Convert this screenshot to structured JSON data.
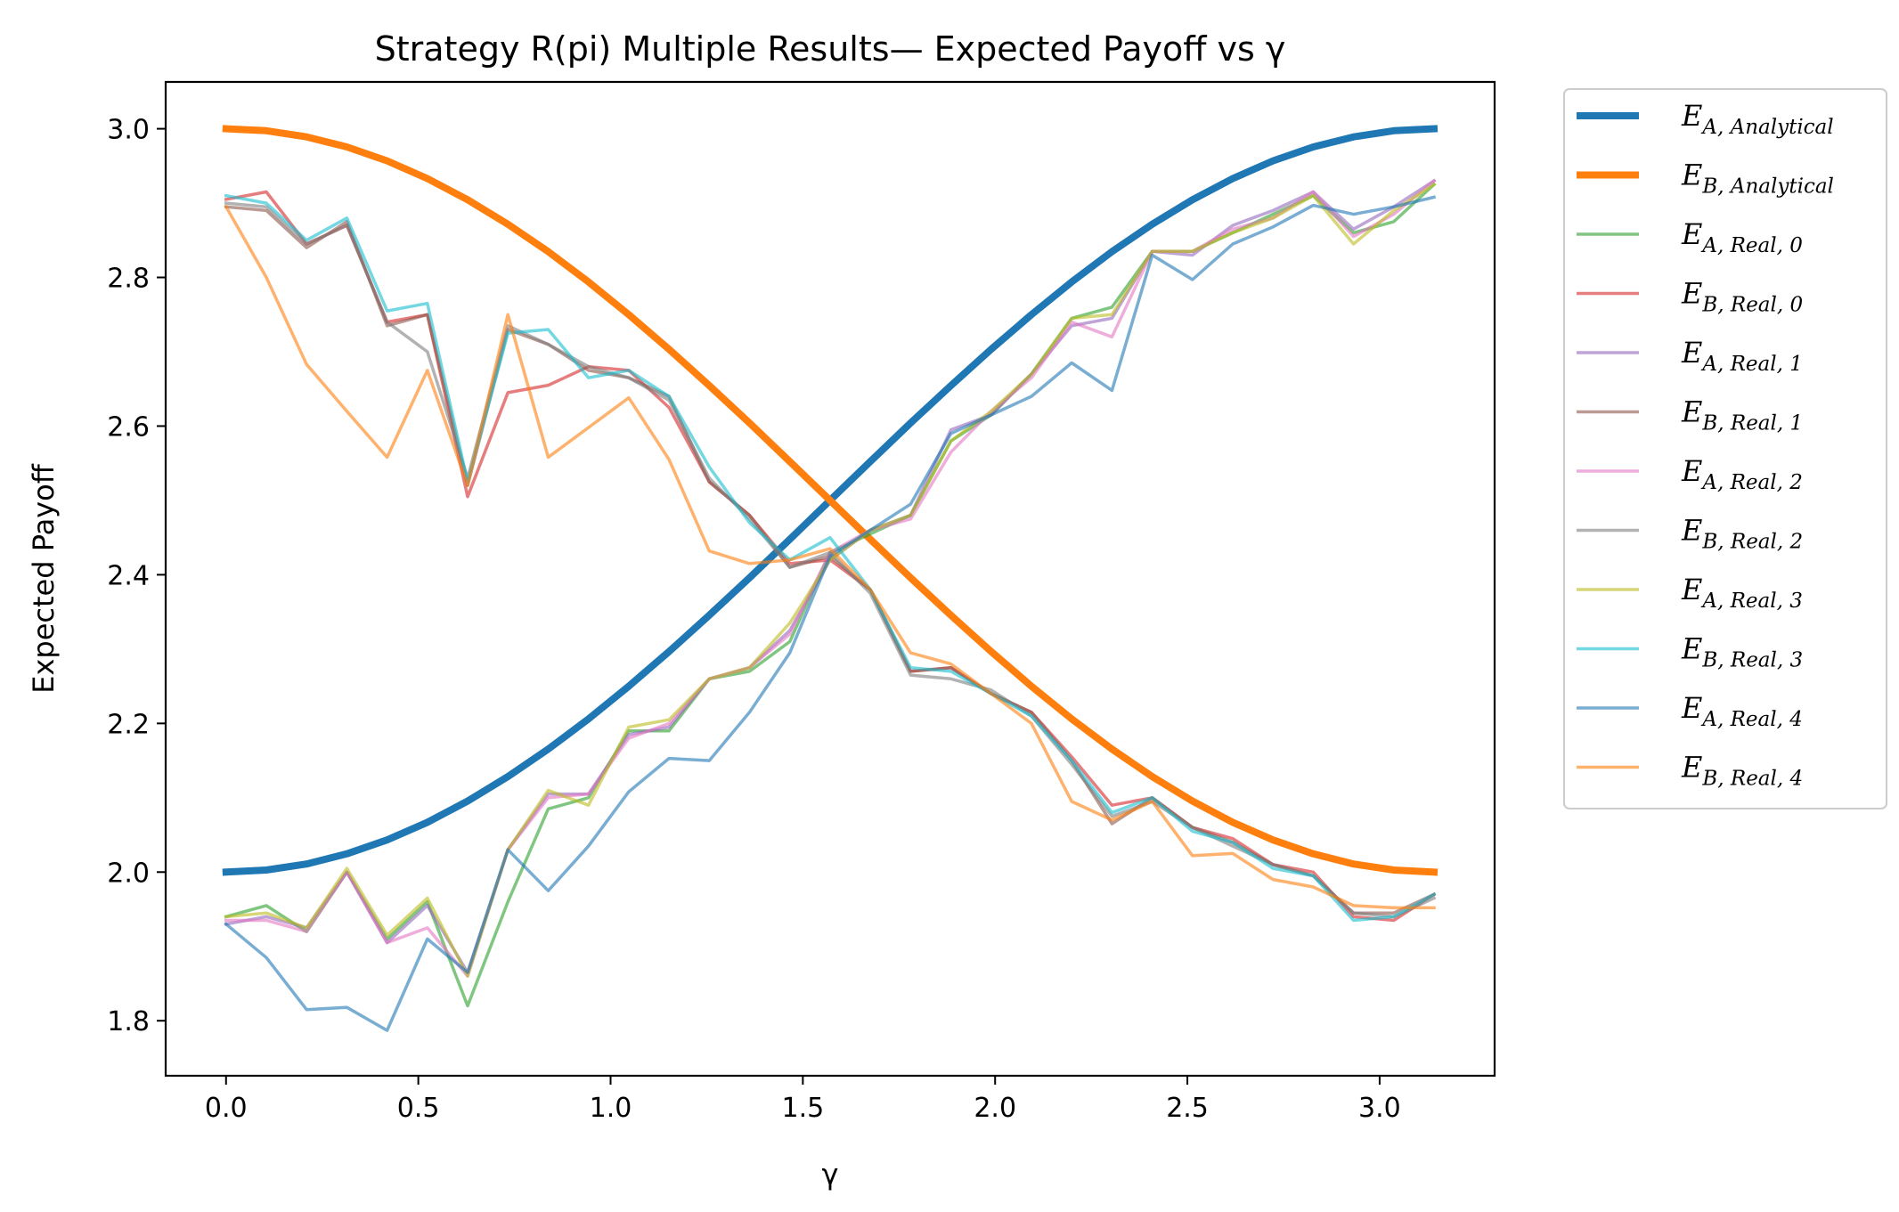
{
  "chart_data": {
    "type": "line",
    "title": "Strategy R(pi) Multiple Results— Expected Payoff vs γ",
    "xlabel": "γ",
    "ylabel": "Expected Payoff",
    "xlim": [
      -0.157,
      3.299
    ],
    "ylim": [
      1.726,
      3.063
    ],
    "xticks": [
      0.0,
      0.5,
      1.0,
      1.5,
      2.0,
      2.5,
      3.0
    ],
    "xtick_labels": [
      "0.0",
      "0.5",
      "1.0",
      "1.5",
      "2.0",
      "2.5",
      "3.0"
    ],
    "yticks": [
      1.8,
      2.0,
      2.2,
      2.4,
      2.6,
      2.8,
      3.0
    ],
    "ytick_labels": [
      "1.8",
      "2.0",
      "2.2",
      "2.4",
      "2.6",
      "2.8",
      "3.0"
    ],
    "grid": false,
    "legend_position": "outside-right",
    "x": [
      0.0,
      0.1047,
      0.2094,
      0.3142,
      0.4189,
      0.5236,
      0.6283,
      0.733,
      0.8378,
      0.9425,
      1.0472,
      1.1519,
      1.2566,
      1.3614,
      1.4661,
      1.5708,
      1.6755,
      1.7802,
      1.885,
      1.9897,
      2.0944,
      2.1991,
      2.3038,
      2.4086,
      2.5133,
      2.618,
      2.7227,
      2.8274,
      2.9322,
      3.0369,
      3.1416
    ],
    "series": [
      {
        "name_main": "E",
        "name_sub": "A, Analytical",
        "color": "#1f77b4",
        "width": 8,
        "opacity": 1.0,
        "values": [
          2.0,
          2.0027,
          2.0109,
          2.0245,
          2.0432,
          2.067,
          2.0955,
          2.1284,
          2.1654,
          2.2061,
          2.25,
          2.2966,
          2.3455,
          2.3959,
          2.4477,
          2.5,
          2.5523,
          2.6041,
          2.6545,
          2.7034,
          2.75,
          2.7939,
          2.8346,
          2.8716,
          2.9045,
          2.933,
          2.9568,
          2.9755,
          2.9891,
          2.9973,
          3.0
        ]
      },
      {
        "name_main": "E",
        "name_sub": "B, Analytical",
        "color": "#ff7f0e",
        "width": 8,
        "opacity": 1.0,
        "values": [
          3.0,
          2.9973,
          2.9891,
          2.9755,
          2.9568,
          2.933,
          2.9045,
          2.8716,
          2.8346,
          2.7939,
          2.75,
          2.7034,
          2.6545,
          2.6041,
          2.5523,
          2.5,
          2.4477,
          2.3959,
          2.3455,
          2.2966,
          2.25,
          2.2061,
          2.1654,
          2.1284,
          2.0955,
          2.067,
          2.0432,
          2.0245,
          2.0109,
          2.0027,
          2.0
        ]
      },
      {
        "name_main": "E",
        "name_sub": "A, Real, 0",
        "color": "#2ca02c",
        "width": 3.5,
        "opacity": 0.6,
        "values": [
          1.94,
          1.955,
          1.92,
          2.0,
          1.91,
          1.96,
          1.82,
          1.96,
          2.085,
          2.1,
          2.19,
          2.19,
          2.26,
          2.27,
          2.31,
          2.43,
          2.455,
          2.48,
          2.58,
          2.615,
          2.67,
          2.745,
          2.76,
          2.835,
          2.835,
          2.86,
          2.885,
          2.91,
          2.86,
          2.875,
          2.925
        ]
      },
      {
        "name_main": "E",
        "name_sub": "B, Real, 0",
        "color": "#d62728",
        "width": 3.5,
        "opacity": 0.6,
        "values": [
          2.905,
          2.915,
          2.845,
          2.87,
          2.74,
          2.75,
          2.505,
          2.645,
          2.655,
          2.68,
          2.675,
          2.625,
          2.525,
          2.48,
          2.415,
          2.42,
          2.38,
          2.27,
          2.275,
          2.24,
          2.215,
          2.155,
          2.09,
          2.1,
          2.06,
          2.045,
          2.01,
          2.0,
          1.94,
          1.935,
          1.97
        ]
      },
      {
        "name_main": "E",
        "name_sub": "A, Real, 1",
        "color": "#9467bd",
        "width": 3.5,
        "opacity": 0.6,
        "values": [
          1.93,
          1.94,
          1.925,
          2.0,
          1.905,
          1.955,
          1.865,
          2.03,
          2.105,
          2.105,
          2.185,
          2.195,
          2.26,
          2.275,
          2.325,
          2.42,
          2.46,
          2.48,
          2.595,
          2.615,
          2.67,
          2.735,
          2.745,
          2.835,
          2.83,
          2.87,
          2.89,
          2.915,
          2.865,
          2.895,
          2.93
        ]
      },
      {
        "name_main": "E",
        "name_sub": "B, Real, 1",
        "color": "#8c564b",
        "width": 3.5,
        "opacity": 0.6,
        "values": [
          2.895,
          2.89,
          2.84,
          2.875,
          2.735,
          2.75,
          2.52,
          2.73,
          2.71,
          2.675,
          2.665,
          2.64,
          2.525,
          2.48,
          2.41,
          2.425,
          2.38,
          2.27,
          2.275,
          2.24,
          2.215,
          2.15,
          2.065,
          2.1,
          2.06,
          2.04,
          2.01,
          1.995,
          1.945,
          1.945,
          1.97
        ]
      },
      {
        "name_main": "E",
        "name_sub": "A, Real, 2",
        "color": "#e377c2",
        "width": 3.5,
        "opacity": 0.6,
        "values": [
          1.935,
          1.935,
          1.92,
          2.0,
          1.905,
          1.925,
          1.86,
          2.03,
          2.1,
          2.105,
          2.18,
          2.2,
          2.26,
          2.275,
          2.32,
          2.43,
          2.46,
          2.475,
          2.565,
          2.62,
          2.665,
          2.74,
          2.72,
          2.835,
          2.835,
          2.865,
          2.88,
          2.915,
          2.855,
          2.885,
          2.93
        ]
      },
      {
        "name_main": "E",
        "name_sub": "B, Real, 2",
        "color": "#7f7f7f",
        "width": 3.5,
        "opacity": 0.6,
        "values": [
          2.9,
          2.895,
          2.845,
          2.87,
          2.74,
          2.7,
          2.53,
          2.735,
          2.71,
          2.68,
          2.665,
          2.635,
          2.53,
          2.475,
          2.41,
          2.43,
          2.375,
          2.265,
          2.26,
          2.245,
          2.21,
          2.145,
          2.075,
          2.095,
          2.06,
          2.035,
          2.01,
          1.995,
          1.945,
          1.94,
          1.965
        ]
      },
      {
        "name_main": "E",
        "name_sub": "A, Real, 3",
        "color": "#bcbd22",
        "width": 3.5,
        "opacity": 0.6,
        "values": [
          1.94,
          1.945,
          1.925,
          2.005,
          1.915,
          1.965,
          1.86,
          2.03,
          2.11,
          2.09,
          2.195,
          2.205,
          2.26,
          2.275,
          2.335,
          2.42,
          2.46,
          2.48,
          2.58,
          2.62,
          2.67,
          2.745,
          2.75,
          2.835,
          2.835,
          2.86,
          2.88,
          2.91,
          2.845,
          2.89,
          2.925
        ]
      },
      {
        "name_main": "E",
        "name_sub": "B, Real, 3",
        "color": "#17becf",
        "width": 3.5,
        "opacity": 0.6,
        "values": [
          2.91,
          2.9,
          2.85,
          2.88,
          2.755,
          2.765,
          2.525,
          2.725,
          2.73,
          2.665,
          2.675,
          2.64,
          2.545,
          2.47,
          2.42,
          2.45,
          2.38,
          2.275,
          2.27,
          2.24,
          2.21,
          2.15,
          2.08,
          2.1,
          2.055,
          2.04,
          2.005,
          1.995,
          1.935,
          1.94,
          1.97
        ]
      },
      {
        "name_main": "E",
        "name_sub": "A, Real, 4",
        "color": "#1f77b4",
        "width": 3.5,
        "opacity": 0.6,
        "values": [
          1.93,
          1.885,
          1.815,
          1.818,
          1.787,
          1.91,
          1.865,
          2.03,
          1.975,
          2.035,
          2.108,
          2.153,
          2.15,
          2.215,
          2.295,
          2.425,
          2.46,
          2.495,
          2.59,
          2.615,
          2.64,
          2.685,
          2.648,
          2.83,
          2.797,
          2.845,
          2.868,
          2.897,
          2.885,
          2.895,
          2.908
        ]
      },
      {
        "name_main": "E",
        "name_sub": "B, Real, 4",
        "color": "#ff7f0e",
        "width": 3.5,
        "opacity": 0.6,
        "values": [
          2.895,
          2.8,
          2.683,
          2.62,
          2.558,
          2.675,
          2.52,
          2.75,
          2.558,
          2.598,
          2.638,
          2.555,
          2.432,
          2.415,
          2.42,
          2.435,
          2.38,
          2.295,
          2.28,
          2.24,
          2.2,
          2.095,
          2.07,
          2.095,
          2.022,
          2.025,
          1.99,
          1.98,
          1.955,
          1.952,
          1.952
        ]
      }
    ]
  }
}
